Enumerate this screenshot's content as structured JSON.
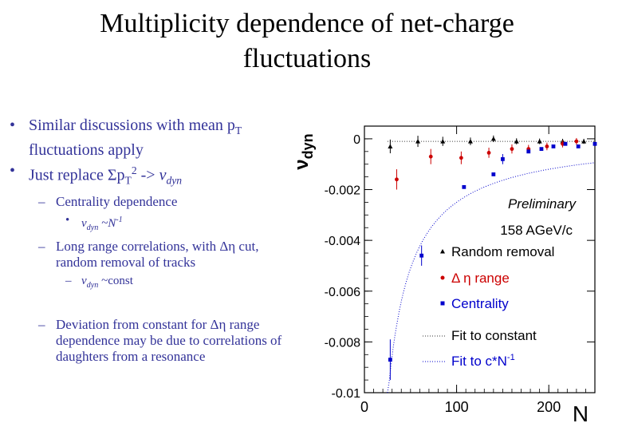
{
  "slide": {
    "title_line1": "Multiplicity dependence of net-charge",
    "title_line2": "fluctuations"
  },
  "bullets": {
    "b1_text": "Similar discussions with mean p",
    "b1_sub": "T",
    "b1_tail": " fluctuations apply",
    "b2_text": "Just replace ",
    "b2_sigma": "Σp",
    "b2_sub": "T",
    "b2_sup": "2",
    "b2_arrow": " -> ",
    "b2_nu": "ν",
    "b2_nu_sub": "dyn",
    "sub1": "Centrality dependence",
    "sub1_point_nu": "ν",
    "sub1_point_sub": "dyn",
    "sub1_point_tail": " ~N",
    "sub1_point_sup": "-1",
    "sub2": "Long range correlations, with Δη cut, random removal of tracks",
    "sub2_point_nu": "ν",
    "sub2_point_sub": "dyn",
    "sub2_point_tail": " ~const",
    "sub3": "Deviation from constant for Δη range dependence may be due to correlations of daughters from a resonance"
  },
  "chart_data": {
    "type": "scatter",
    "ylabel": "ν",
    "ylabel_sub": "dyn",
    "xlabel": "N",
    "xlim": [
      0,
      250
    ],
    "ylim": [
      -0.01,
      0.0005
    ],
    "xticks": [
      0,
      100,
      200
    ],
    "yticks": [
      0,
      -0.002,
      -0.004,
      -0.006,
      -0.008,
      -0.01
    ],
    "ytick_labels": [
      "0",
      "-0.002",
      "-0.004",
      "-0.006",
      "-0.008",
      "-0.01"
    ],
    "annotations": [
      "Preliminary",
      "158 AGeV/c"
    ],
    "series": [
      {
        "name": "Random removal",
        "marker": "triangle",
        "color": "#000000",
        "x": [
          28,
          58,
          85,
          115,
          140,
          165,
          190,
          215,
          238
        ],
        "y": [
          -0.0003,
          -0.0001,
          -0.0001,
          -0.0001,
          0.0,
          -0.0001,
          -0.0001,
          -0.0001,
          -0.0001
        ],
        "err": [
          0.00027,
          0.00022,
          0.00018,
          0.00015,
          0.00013,
          0.00012,
          0.00011,
          0.0001,
          0.0001
        ]
      },
      {
        "name": "Δ η range",
        "marker": "circle",
        "color": "#cc0000",
        "x": [
          35,
          72,
          105,
          135,
          160,
          178,
          198,
          215,
          230
        ],
        "y": [
          -0.0016,
          -0.0007,
          -0.00075,
          -0.00055,
          -0.0004,
          -0.0004,
          -0.0003,
          -0.0002,
          -0.0001
        ],
        "err": [
          0.0004,
          0.0003,
          0.00025,
          0.0002,
          0.00018,
          0.00016,
          0.00015,
          0.00014,
          0.00013
        ]
      },
      {
        "name": "Centrality",
        "marker": "square",
        "color": "#0000cc",
        "x": [
          28,
          62,
          108,
          140,
          150,
          178,
          192,
          205,
          218,
          232,
          250
        ],
        "y": [
          -0.0087,
          -0.0046,
          -0.0019,
          -0.0014,
          -0.0008,
          -0.0005,
          -0.0004,
          -0.0003,
          -0.0002,
          -0.0003,
          -0.0002
        ],
        "err": [
          0.0008,
          0.0004,
          0.0,
          0.0,
          0.0002,
          0.0,
          0.0,
          0.0,
          0.0,
          0.0,
          0.0
        ]
      }
    ],
    "fits": [
      {
        "name": "Fit to constant",
        "color": "#333333",
        "y": -0.0001
      },
      {
        "name": "Fit to c*N",
        "name_sup": "-1",
        "color": "#0000cc",
        "a": 0.0001,
        "c": -0.26
      }
    ],
    "colors": {
      "text_blue": "#333399",
      "axis": "#000000"
    }
  }
}
